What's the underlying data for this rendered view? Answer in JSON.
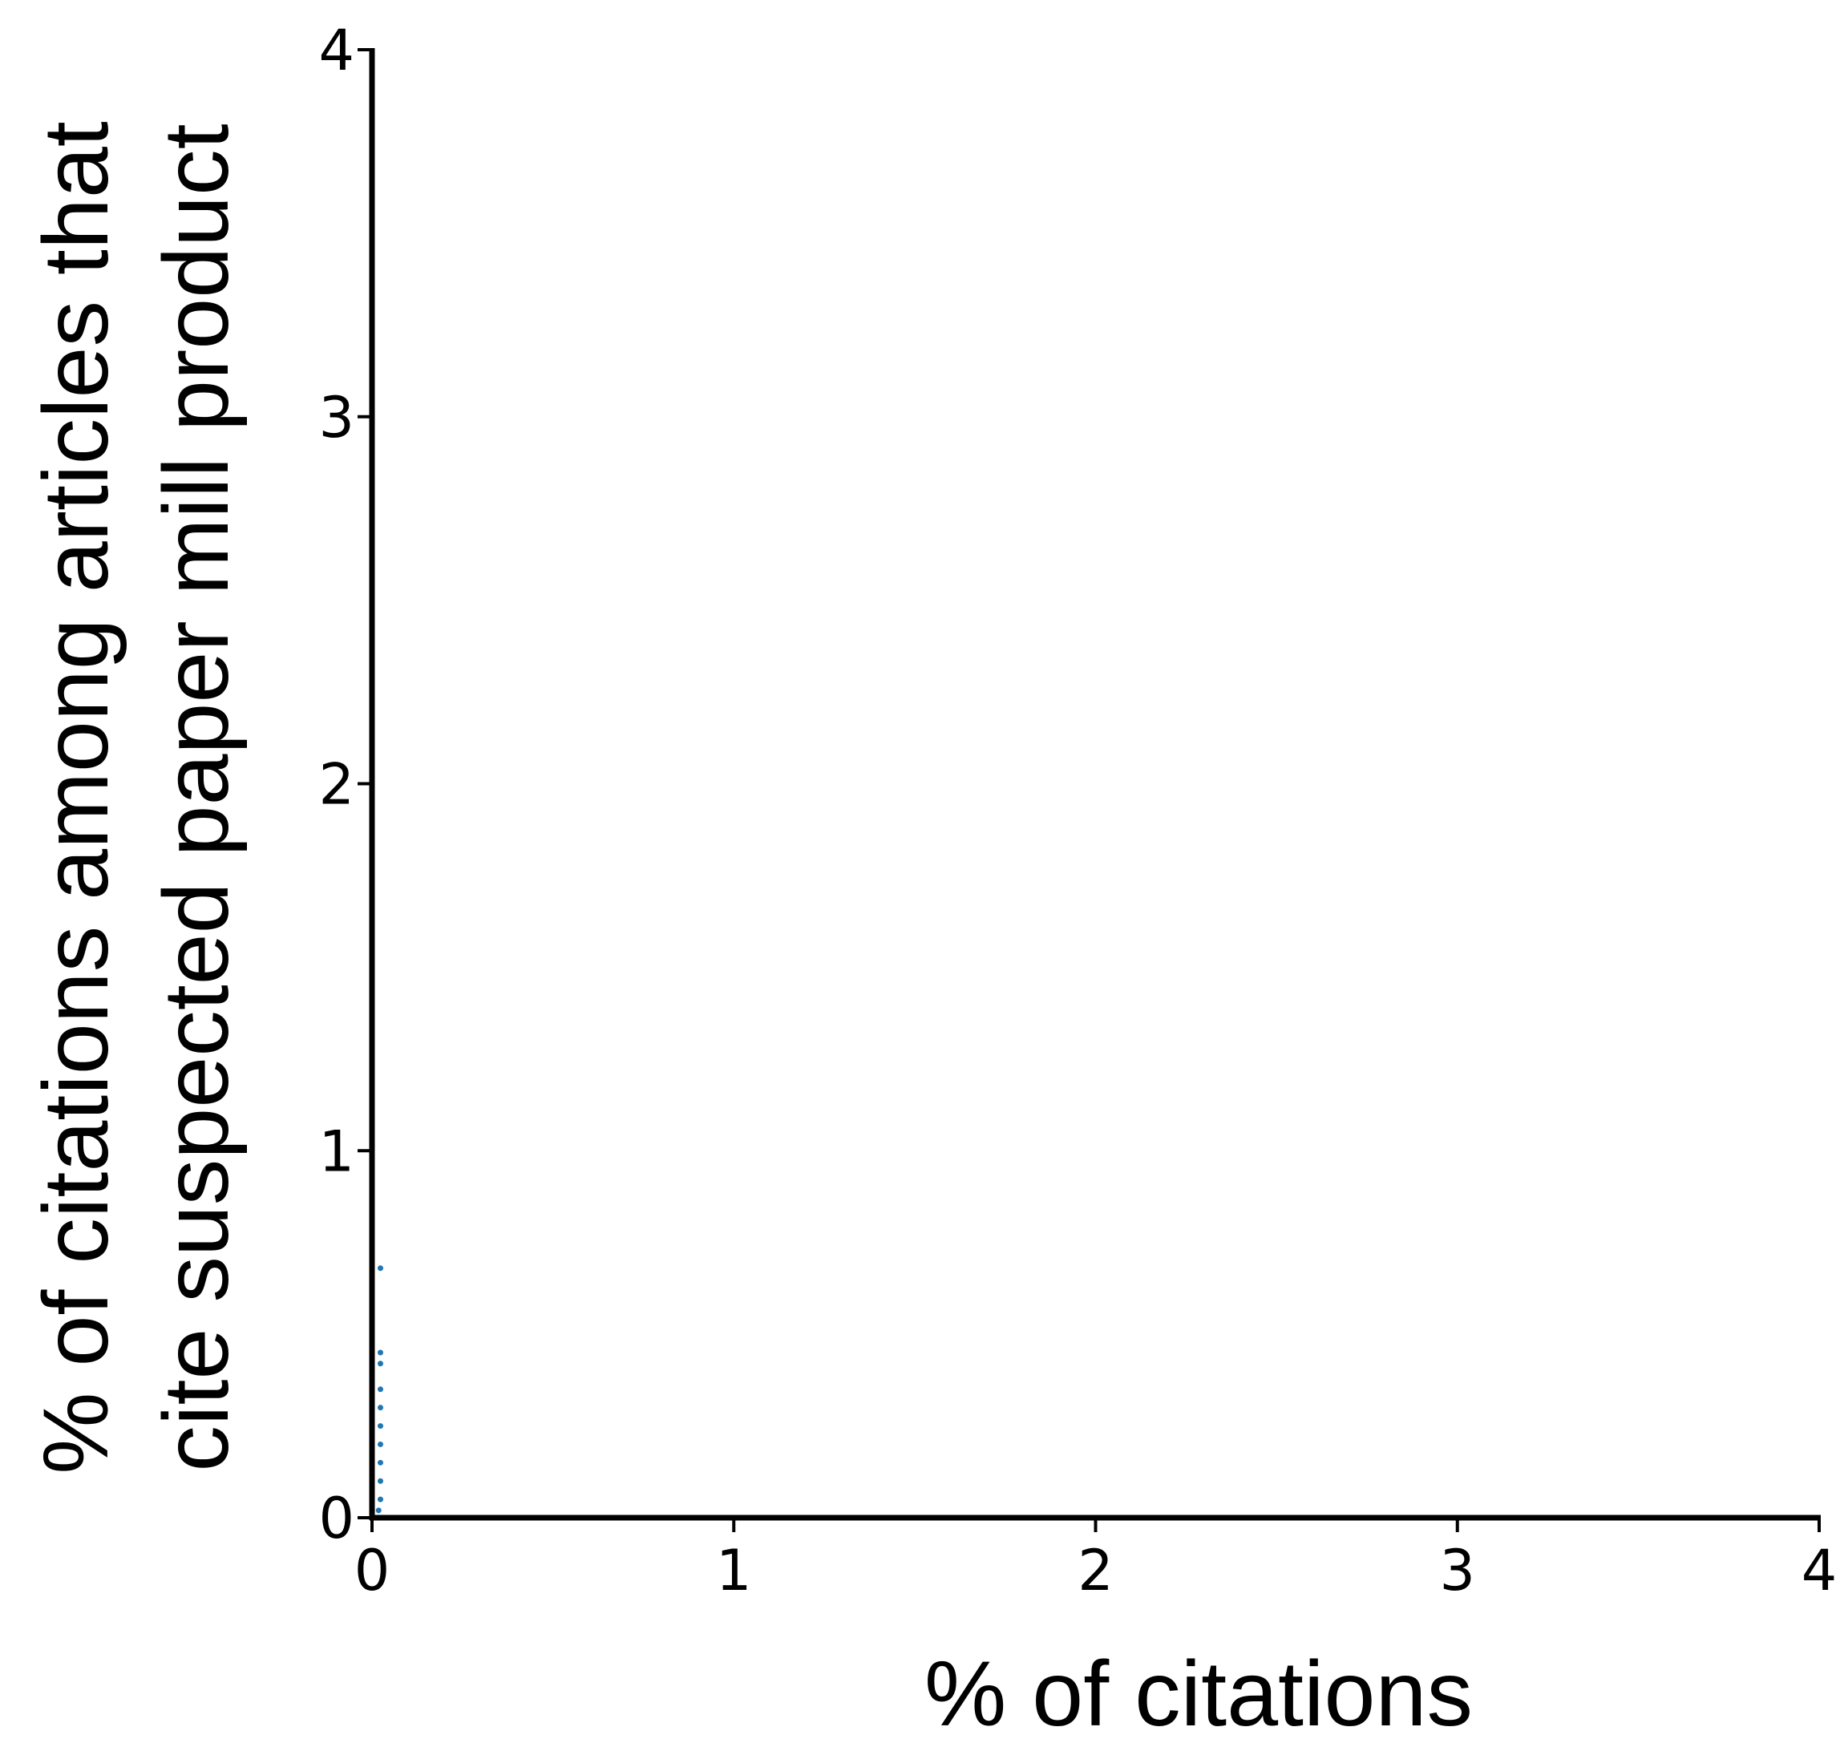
{
  "chart_data": {
    "type": "scatter",
    "title": "",
    "xlabel": "% of citations",
    "ylabel_lines": [
      "% of citations among articles that",
      "cite suspected paper mill product"
    ],
    "xlim": [
      0,
      4
    ],
    "ylim": [
      0,
      4
    ],
    "xticks": [
      0,
      1,
      2,
      3,
      4
    ],
    "yticks": [
      0,
      1,
      2,
      3,
      4
    ],
    "xtick_labels": [
      "0",
      "1",
      "2",
      "3",
      "4"
    ],
    "ytick_labels": [
      "0",
      "1",
      "2",
      "3",
      "4"
    ],
    "grid": false,
    "legend": "none",
    "series": [
      {
        "color": "#1f77b4",
        "points": [
          {
            "x": 0.01,
            "y": 0.68
          },
          {
            "x": 0.01,
            "y": 0.45
          },
          {
            "x": 0.01,
            "y": 0.42
          },
          {
            "x": 0.01,
            "y": 0.35
          },
          {
            "x": 0.01,
            "y": 0.3
          },
          {
            "x": 0.01,
            "y": 0.25
          },
          {
            "x": 0.01,
            "y": 0.2
          },
          {
            "x": 0.01,
            "y": 0.15
          },
          {
            "x": 0.01,
            "y": 0.1
          },
          {
            "x": 0.01,
            "y": 0.05
          },
          {
            "x": 0.005,
            "y": 0.02
          }
        ]
      }
    ]
  }
}
